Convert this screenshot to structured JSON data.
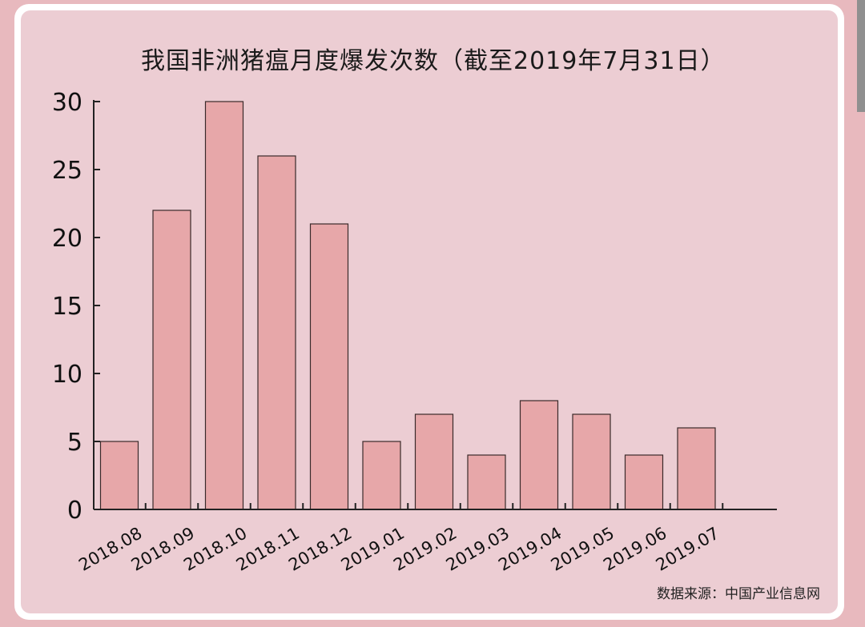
{
  "chart_data": {
    "type": "bar",
    "title": "我国非洲猪瘟月度爆发次数（截至2019年7月31日）",
    "source": "数据来源：中国产业信息网",
    "categories": [
      "2018.08",
      "2018.09",
      "2018.10",
      "2018.11",
      "2018.12",
      "2019.01",
      "2019.02",
      "2019.03",
      "2019.04",
      "2019.05",
      "2019.06",
      "2019.07"
    ],
    "values": [
      5,
      22,
      30,
      26,
      21,
      5,
      7,
      4,
      8,
      7,
      4,
      6
    ],
    "ylim": [
      0,
      30
    ],
    "yticks": [
      0,
      5,
      10,
      15,
      20,
      25,
      30
    ],
    "grid": false,
    "legend": "none",
    "colors": {
      "bar_fill": "#e7a7a9",
      "bar_stroke": "#3a2a2a",
      "axis": "#222222",
      "plot_bg": "#eccdd3"
    }
  }
}
